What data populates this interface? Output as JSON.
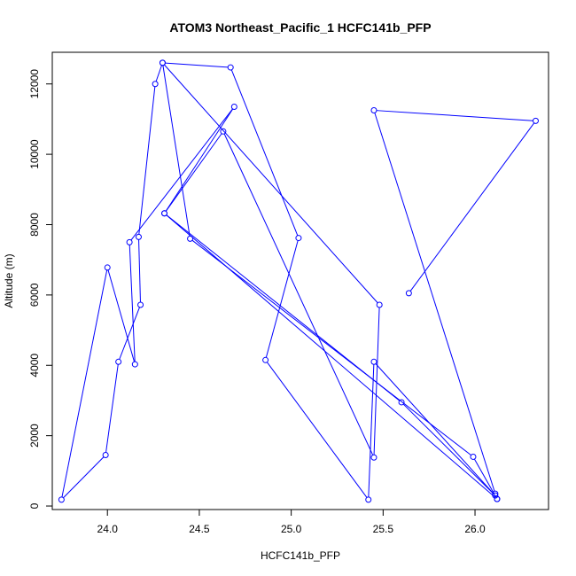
{
  "chart_data": {
    "type": "line",
    "title": "ATOM3 Northeast_Pacific_1 HCFC141b_PFP",
    "xlabel": "HCFC141b_PFP",
    "ylabel": "Altitude (m)",
    "xlim": [
      23.7,
      26.4
    ],
    "ylim": [
      -100,
      12900
    ],
    "xticks": [
      "24.0",
      "24.5",
      "25.0",
      "25.5",
      "26.0"
    ],
    "xtick_values": [
      24.0,
      24.5,
      25.0,
      25.5,
      26.0
    ],
    "yticks": [
      "0",
      "2000",
      "4000",
      "6000",
      "8000",
      "10000",
      "12000"
    ],
    "ytick_values": [
      0,
      2000,
      4000,
      6000,
      8000,
      10000,
      12000
    ],
    "grid": false,
    "series": [
      {
        "color": "#0000ff",
        "marker": "open-circle",
        "x": [
          25.64,
          26.33,
          25.45,
          26.11,
          26.12,
          25.99,
          24.45,
          24.3,
          24.26,
          24.17,
          24.18,
          24.06,
          23.99,
          23.75,
          24.0,
          24.15,
          24.12,
          24.69,
          24.31,
          25.6,
          26.11,
          25.45,
          25.42,
          24.86,
          25.04,
          24.67,
          24.3,
          25.48,
          25.45,
          24.63,
          24.31,
          26.12
        ],
        "y": [
          6050,
          10950,
          11250,
          350,
          200,
          1400,
          7600,
          12600,
          12000,
          7650,
          5720,
          4100,
          1450,
          180,
          6780,
          4030,
          7500,
          11350,
          8320,
          2950,
          300,
          4100,
          180,
          4150,
          7620,
          12470,
          12600,
          5720,
          1380,
          10650,
          8320,
          200
        ]
      }
    ]
  }
}
